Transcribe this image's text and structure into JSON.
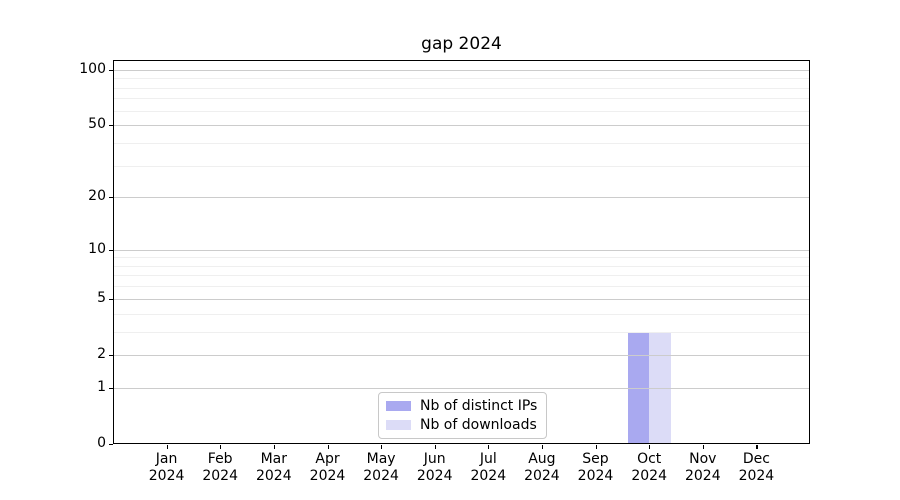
{
  "chart_data": {
    "type": "bar",
    "title": "gap 2024",
    "categories": [
      "Jan",
      "Feb",
      "Mar",
      "Apr",
      "May",
      "Jun",
      "Jul",
      "Aug",
      "Sep",
      "Oct",
      "Nov",
      "Dec"
    ],
    "x_year_label": "2024",
    "series": [
      {
        "name": "Nb of distinct IPs",
        "color": "#a9a9f0",
        "values": [
          0,
          0,
          0,
          0,
          0,
          0,
          0,
          0,
          0,
          3,
          0,
          0
        ]
      },
      {
        "name": "Nb of downloads",
        "color": "#dcdcf7",
        "values": [
          0,
          0,
          0,
          0,
          0,
          0,
          0,
          0,
          0,
          3,
          0,
          0
        ]
      }
    ],
    "y_axis": {
      "scale": "log1p",
      "major_ticks": [
        0,
        1,
        2,
        5,
        10,
        20,
        50,
        100
      ],
      "minor_ticks": [
        3,
        4,
        6,
        7,
        8,
        9,
        30,
        40,
        60,
        70,
        80,
        90
      ],
      "ylim": [
        0,
        113
      ]
    },
    "grid": "horizontal",
    "legend_position": "lower center",
    "legend_entries": [
      "Nb of distinct IPs",
      "Nb of downloads"
    ]
  },
  "colors": {
    "background": "#ffffff",
    "spine": "#000000",
    "major_grid": "#cccccc",
    "minor_grid": "#efefef",
    "bar_distinct_ips": "#a9a9f0",
    "bar_downloads": "#dcdcf7",
    "text": "#000000",
    "legend_border": "#c8c8c8"
  }
}
